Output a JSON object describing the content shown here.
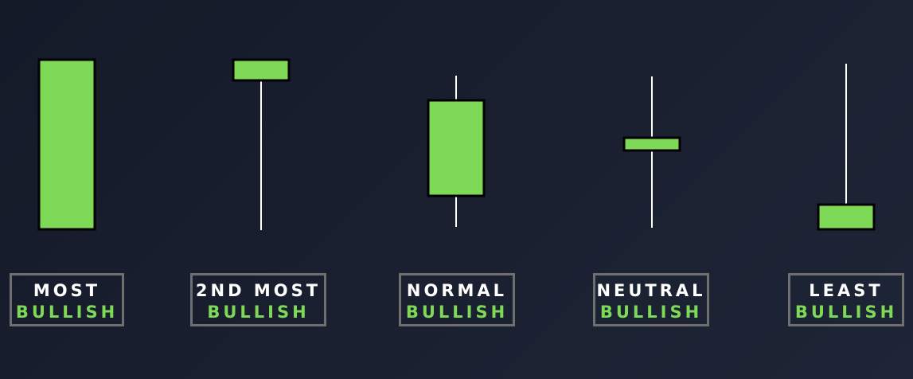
{
  "colors": {
    "background": "#171d2b",
    "candle_body": "#7ed957",
    "candle_outline": "#000000",
    "wick": "#ffffff",
    "label_border": "#6f6f6f",
    "label_top_text": "#ffffff",
    "label_bottom_text": "#7ed957"
  },
  "candles": [
    {
      "id": "most",
      "label_top": "MOST",
      "label_bottom": "BULLISH",
      "rank": 1,
      "body_fraction": 1.0,
      "upper_wick_fraction": 0.0,
      "lower_wick_fraction": 0.0
    },
    {
      "id": "second-most",
      "label_top": "2ND MOST",
      "label_bottom": "BULLISH",
      "rank": 2,
      "body_fraction": 0.13,
      "upper_wick_fraction": 0.0,
      "lower_wick_fraction": 0.87
    },
    {
      "id": "normal",
      "label_top": "NORMAL",
      "label_bottom": "BULLISH",
      "rank": 3,
      "body_fraction": 0.63,
      "upper_wick_fraction": 0.16,
      "lower_wick_fraction": 0.21
    },
    {
      "id": "neutral",
      "label_top": "NEUTRAL",
      "label_bottom": "BULLISH",
      "rank": 4,
      "body_fraction": 0.09,
      "upper_wick_fraction": 0.43,
      "lower_wick_fraction": 0.48
    },
    {
      "id": "least",
      "label_top": "LEAST",
      "label_bottom": "BULLISH",
      "rank": 5,
      "body_fraction": 0.16,
      "upper_wick_fraction": 0.84,
      "lower_wick_fraction": 0.0
    }
  ]
}
